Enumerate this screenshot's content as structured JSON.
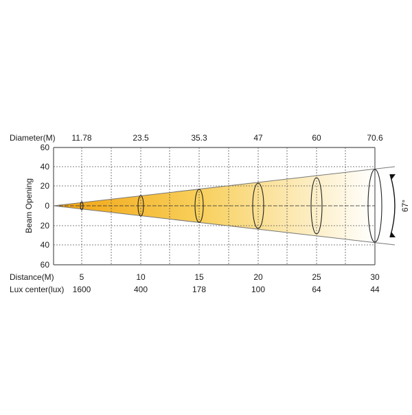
{
  "labels": {
    "diameter": "Diameter(M)",
    "distance": "Distance(M)",
    "lux": "Lux center(lux)",
    "beam_opening": "Beam Opening",
    "angle": "67°"
  },
  "y_ticks": [
    "60",
    "40",
    "20",
    "0",
    "20",
    "40",
    "60"
  ],
  "columns": [
    {
      "diameter": "11.78",
      "distance": "5",
      "lux": "1600"
    },
    {
      "diameter": "23.5",
      "distance": "10",
      "lux": "400"
    },
    {
      "diameter": "35.3",
      "distance": "15",
      "lux": "178"
    },
    {
      "diameter": "47",
      "distance": "20",
      "lux": "100"
    },
    {
      "diameter": "60",
      "distance": "25",
      "lux": "64"
    },
    {
      "diameter": "70.6",
      "distance": "30",
      "lux": "44"
    }
  ],
  "colors": {
    "beam_start": "#f2a20f",
    "beam_mid": "#f8cf5a",
    "beam_end": "#ffffff",
    "grid": "#555555",
    "outline": "#777777"
  }
}
